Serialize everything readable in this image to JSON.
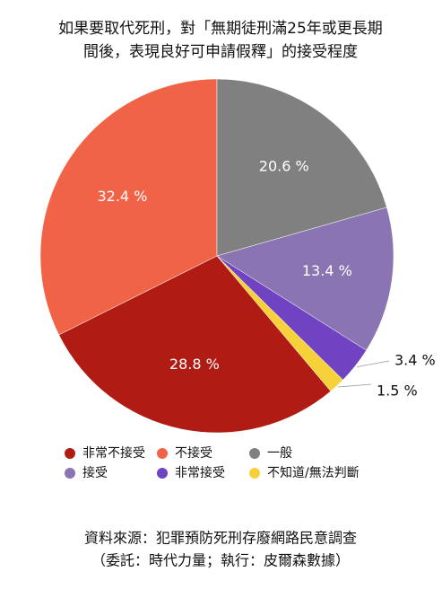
{
  "chart_data": {
    "type": "pie",
    "title": [
      "如果要取代死刑，對「無期徒刑滿25年或更長期",
      "間後，表現良好可申請假釋」的接受程度"
    ],
    "categories": [
      "非常不接受",
      "不接受",
      "一般",
      "接受",
      "非常接受",
      "不知道/無法判斷"
    ],
    "values": [
      28.8,
      32.4,
      20.6,
      13.4,
      3.4,
      1.5
    ],
    "value_labels": [
      "28.8 %",
      "32.4 %",
      "20.6 %",
      "13.4 %",
      "3.4 %",
      "1.5 %"
    ],
    "colors": [
      "#b01c14",
      "#f06346",
      "#808080",
      "#8a74b2",
      "#7043c2",
      "#f7d13a"
    ],
    "source": [
      "資料來源：犯罪預防死刑存廢網路民意調查",
      "（委託：時代力量；執行：皮爾森數據）"
    ]
  }
}
